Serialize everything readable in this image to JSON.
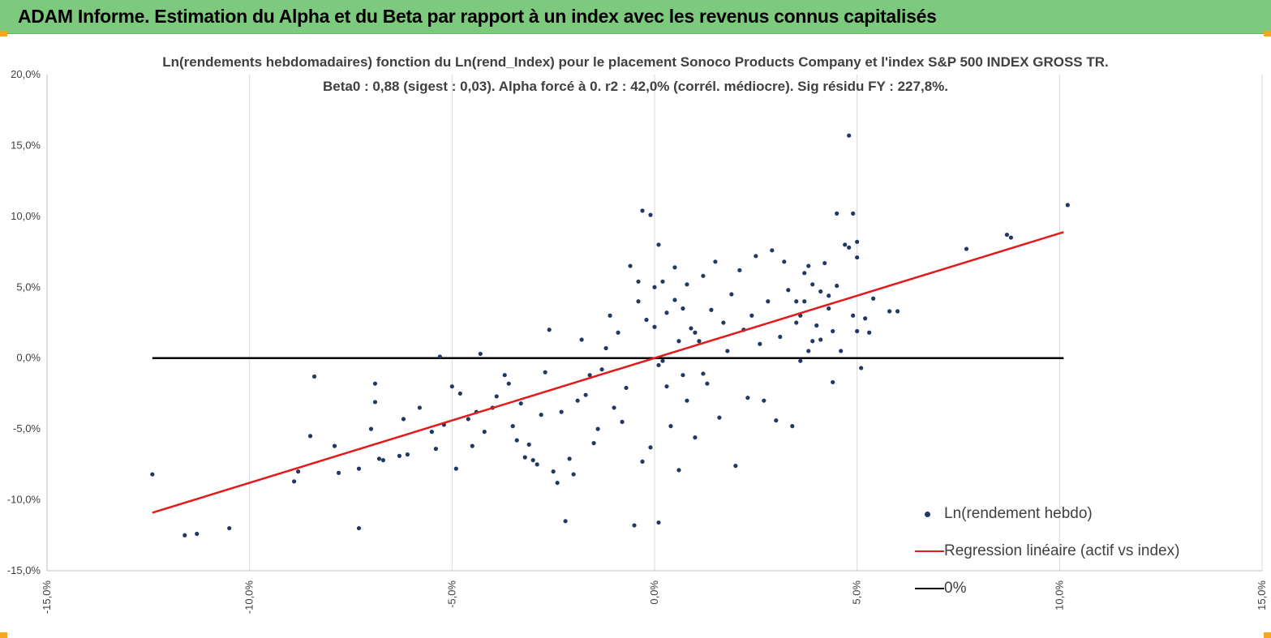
{
  "header": {
    "title": "ADAM Informe. Estimation du Alpha et du Beta par rapport à un index avec les revenus connus capitalisés"
  },
  "colors": {
    "banner": "#7dc97d",
    "points": "#1f3864",
    "regression": "#e31a1c",
    "zero_line": "#000000",
    "corner": "#f5a623"
  },
  "chart_data": {
    "type": "scatter",
    "title": "Ln(rendements hebdomadaires) fonction du Ln(rend_Index) pour le placement Sonoco Products Company et l'index S&P 500 INDEX GROSS TR.",
    "subtitle": "Beta0 : 0,88  (sigest : 0,03). Alpha forcé à 0. r2 : 42,0% (corrél. médiocre). Sig résidu FY : 227,8%.",
    "xlim": [
      -0.15,
      0.15
    ],
    "ylim": [
      -0.15,
      0.2
    ],
    "x_ticks": [
      -0.15,
      -0.1,
      -0.05,
      0.0,
      0.05,
      0.1,
      0.15
    ],
    "y_ticks": [
      -0.15,
      -0.1,
      -0.05,
      0.0,
      0.05,
      0.1,
      0.15,
      0.2
    ],
    "x_tick_labels": [
      "-15,0%",
      "-10,0%",
      "-5,0%",
      "0,0%",
      "5,0%",
      "10,0%",
      "15,0%"
    ],
    "y_tick_labels": [
      "-15,0%",
      "-10,0%",
      "-5,0%",
      "0,0%",
      "5,0%",
      "10,0%",
      "15,0%",
      "20,0%"
    ],
    "grid": "vertical",
    "legend_position": "bottom-right",
    "beta": 0.88,
    "series": [
      {
        "name": "Ln(rendement hebdo)",
        "kind": "scatter",
        "points": [
          [
            -0.124,
            -0.082
          ],
          [
            -0.116,
            -0.125
          ],
          [
            -0.113,
            -0.124
          ],
          [
            -0.105,
            -0.12
          ],
          [
            -0.089,
            -0.087
          ],
          [
            -0.088,
            -0.08
          ],
          [
            -0.085,
            -0.055
          ],
          [
            -0.084,
            -0.013
          ],
          [
            -0.079,
            -0.062
          ],
          [
            -0.078,
            -0.081
          ],
          [
            -0.073,
            -0.12
          ],
          [
            -0.073,
            -0.078
          ],
          [
            -0.07,
            -0.05
          ],
          [
            -0.069,
            -0.018
          ],
          [
            -0.069,
            -0.031
          ],
          [
            -0.068,
            -0.071
          ],
          [
            -0.067,
            -0.072
          ],
          [
            -0.063,
            -0.069
          ],
          [
            -0.062,
            -0.043
          ],
          [
            -0.061,
            -0.068
          ],
          [
            -0.058,
            -0.035
          ],
          [
            -0.055,
            -0.052
          ],
          [
            -0.054,
            -0.064
          ],
          [
            -0.053,
            0.001
          ],
          [
            -0.052,
            -0.047
          ],
          [
            -0.05,
            -0.02
          ],
          [
            -0.049,
            -0.078
          ],
          [
            -0.048,
            -0.025
          ],
          [
            -0.046,
            -0.043
          ],
          [
            -0.045,
            -0.062
          ],
          [
            -0.044,
            -0.038
          ],
          [
            -0.043,
            0.003
          ],
          [
            -0.042,
            -0.052
          ],
          [
            -0.04,
            -0.035
          ],
          [
            -0.039,
            -0.027
          ],
          [
            -0.037,
            -0.012
          ],
          [
            -0.036,
            -0.018
          ],
          [
            -0.035,
            -0.048
          ],
          [
            -0.034,
            -0.058
          ],
          [
            -0.033,
            -0.032
          ],
          [
            -0.032,
            -0.07
          ],
          [
            -0.031,
            -0.061
          ],
          [
            -0.03,
            -0.072
          ],
          [
            -0.029,
            -0.075
          ],
          [
            -0.028,
            -0.04
          ],
          [
            -0.027,
            -0.01
          ],
          [
            -0.026,
            0.02
          ],
          [
            -0.025,
            -0.08
          ],
          [
            -0.024,
            -0.088
          ],
          [
            -0.023,
            -0.038
          ],
          [
            -0.022,
            -0.115
          ],
          [
            -0.021,
            -0.071
          ],
          [
            -0.02,
            -0.082
          ],
          [
            -0.019,
            -0.03
          ],
          [
            -0.018,
            0.013
          ],
          [
            -0.017,
            -0.026
          ],
          [
            -0.016,
            -0.012
          ],
          [
            -0.015,
            -0.06
          ],
          [
            -0.014,
            -0.05
          ],
          [
            -0.013,
            -0.008
          ],
          [
            -0.012,
            0.007
          ],
          [
            -0.011,
            0.03
          ],
          [
            -0.01,
            -0.035
          ],
          [
            -0.009,
            0.018
          ],
          [
            -0.008,
            -0.045
          ],
          [
            -0.007,
            -0.021
          ],
          [
            -0.006,
            0.065
          ],
          [
            -0.005,
            -0.118
          ],
          [
            -0.004,
            0.04
          ],
          [
            -0.003,
            -0.073
          ],
          [
            -0.002,
            0.027
          ],
          [
            -0.001,
            -0.063
          ],
          [
            0.0,
            0.05
          ],
          [
            0.001,
            -0.116
          ],
          [
            0.002,
            -0.002
          ],
          [
            0.003,
            0.032
          ],
          [
            0.004,
            -0.048
          ],
          [
            0.005,
            0.064
          ],
          [
            0.006,
            -0.079
          ],
          [
            0.007,
            0.035
          ],
          [
            0.008,
            -0.03
          ],
          [
            0.009,
            0.021
          ],
          [
            0.01,
            -0.056
          ],
          [
            0.011,
            0.012
          ],
          [
            0.012,
            -0.011
          ],
          [
            -0.003,
            0.104
          ],
          [
            -0.001,
            0.101
          ],
          [
            0.001,
            0.08
          ],
          [
            -0.004,
            0.054
          ],
          [
            0.002,
            0.054
          ],
          [
            0.0,
            0.022
          ],
          [
            0.001,
            -0.005
          ],
          [
            0.003,
            -0.02
          ],
          [
            0.005,
            0.041
          ],
          [
            0.006,
            0.012
          ],
          [
            0.007,
            -0.012
          ],
          [
            0.008,
            0.052
          ],
          [
            0.01,
            0.018
          ],
          [
            0.012,
            0.058
          ],
          [
            0.013,
            -0.018
          ],
          [
            0.014,
            0.034
          ],
          [
            0.015,
            0.068
          ],
          [
            0.016,
            -0.042
          ],
          [
            0.017,
            0.025
          ],
          [
            0.018,
            0.005
          ],
          [
            0.019,
            0.045
          ],
          [
            0.02,
            -0.076
          ],
          [
            0.021,
            0.062
          ],
          [
            0.022,
            0.02
          ],
          [
            0.023,
            -0.028
          ],
          [
            0.024,
            0.03
          ],
          [
            0.025,
            0.072
          ],
          [
            0.026,
            0.01
          ],
          [
            0.027,
            -0.03
          ],
          [
            0.028,
            0.04
          ],
          [
            0.029,
            0.076
          ],
          [
            0.03,
            -0.044
          ],
          [
            0.031,
            0.015
          ],
          [
            0.032,
            0.068
          ],
          [
            0.033,
            0.048
          ],
          [
            0.034,
            -0.048
          ],
          [
            0.035,
            0.025
          ],
          [
            0.036,
            0.03
          ],
          [
            0.037,
            0.06
          ],
          [
            0.038,
            0.005
          ],
          [
            0.039,
            0.052
          ],
          [
            0.04,
            0.023
          ],
          [
            0.041,
            0.013
          ],
          [
            0.042,
            0.067
          ],
          [
            0.043,
            0.044
          ],
          [
            0.044,
            0.019
          ],
          [
            0.045,
            0.051
          ],
          [
            0.046,
            0.005
          ],
          [
            0.047,
            0.08
          ],
          [
            0.048,
            0.078
          ],
          [
            0.049,
            0.03
          ],
          [
            0.05,
            0.019
          ],
          [
            0.045,
            0.102
          ],
          [
            0.048,
            0.157
          ],
          [
            0.049,
            0.102
          ],
          [
            0.05,
            0.071
          ],
          [
            0.05,
            0.082
          ],
          [
            0.051,
            -0.007
          ],
          [
            0.052,
            0.028
          ],
          [
            0.053,
            0.018
          ],
          [
            0.054,
            0.042
          ],
          [
            0.044,
            -0.017
          ],
          [
            0.058,
            0.033
          ],
          [
            0.06,
            0.033
          ],
          [
            0.077,
            0.077
          ],
          [
            0.087,
            0.087
          ],
          [
            0.088,
            0.085
          ],
          [
            0.102,
            0.108
          ],
          [
            0.035,
            0.04
          ],
          [
            0.036,
            -0.002
          ],
          [
            0.037,
            0.04
          ],
          [
            0.038,
            0.065
          ],
          [
            0.039,
            0.012
          ],
          [
            0.041,
            0.047
          ],
          [
            0.043,
            0.035
          ]
        ]
      },
      {
        "name": "Regression linéaire (actif vs index)",
        "kind": "line",
        "x": [
          -0.124,
          0.101
        ],
        "y": [
          -0.1091,
          0.0889
        ]
      },
      {
        "name": "0%",
        "kind": "line",
        "x": [
          -0.124,
          0.101
        ],
        "y": [
          0.0,
          0.0
        ]
      }
    ]
  }
}
